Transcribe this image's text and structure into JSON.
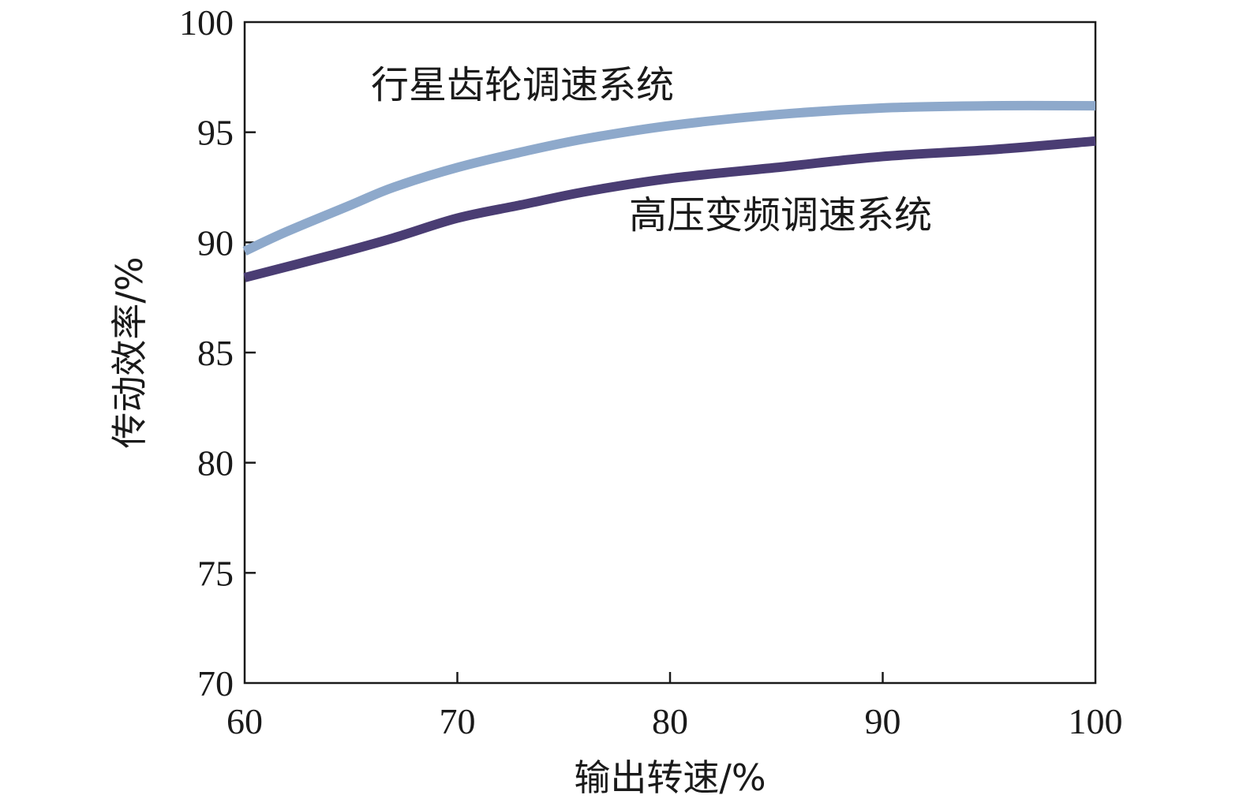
{
  "chart_data": {
    "type": "line",
    "title": "",
    "xlabel": "输出转速/%",
    "ylabel": "传动效率/%",
    "xlim": [
      60,
      100
    ],
    "ylim": [
      70,
      100
    ],
    "xticks": [
      60,
      70,
      80,
      90,
      100
    ],
    "yticks": [
      70,
      75,
      80,
      85,
      90,
      95,
      100
    ],
    "grid": false,
    "legend": "inline-labels",
    "series": [
      {
        "name": "行星齿轮调速系统",
        "color": "#8ea9cb",
        "x": [
          60,
          62,
          65,
          67,
          70,
          73,
          76,
          80,
          85,
          90,
          95,
          100
        ],
        "y": [
          89.6,
          90.5,
          91.7,
          92.5,
          93.4,
          94.1,
          94.7,
          95.3,
          95.8,
          96.1,
          96.2,
          96.2
        ]
      },
      {
        "name": "高压变频调速系统",
        "color": "#4a3d73",
        "x": [
          60,
          64,
          67,
          70,
          73,
          76,
          80,
          85,
          90,
          95,
          100
        ],
        "y": [
          88.4,
          89.4,
          90.2,
          91.1,
          91.7,
          92.3,
          92.9,
          93.4,
          93.9,
          94.2,
          94.6
        ]
      }
    ]
  }
}
